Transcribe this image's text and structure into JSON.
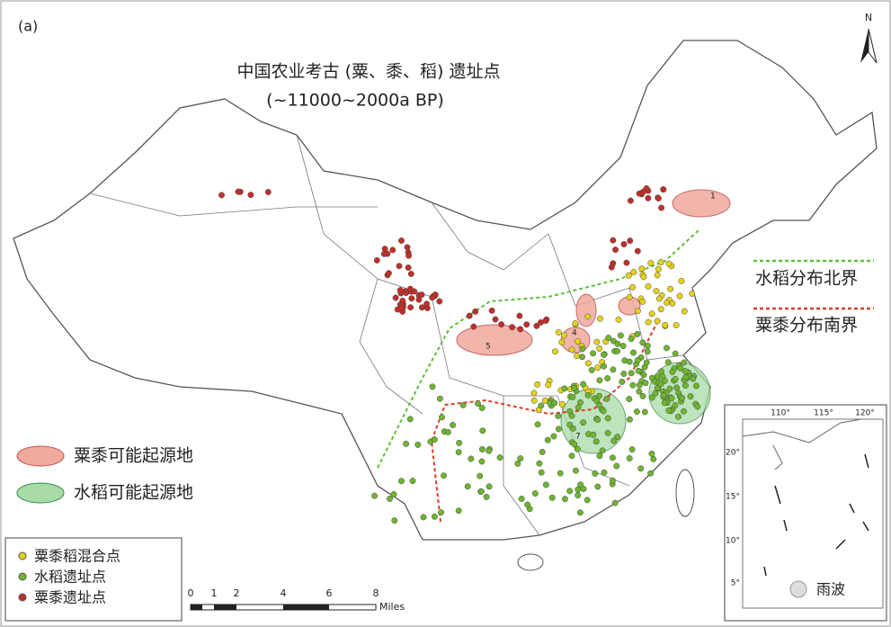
{
  "label": "(a)",
  "title": "中国农业考古 (粟、黍、稻) 遗址点",
  "subtitle": "(~11000~2000a BP)",
  "north": "N",
  "boundaries": [
    "水稻分布北界",
    "粟黍分布南界"
  ],
  "origins": [
    "粟黍可能起源地",
    "水稻可能起源地"
  ],
  "legend": [
    "粟黍稻混合点",
    "水稻遗址点",
    "粟黍遗址点"
  ],
  "region_numbers": [
    "1",
    "4",
    "5",
    "7"
  ],
  "scale": {
    "ticks": [
      "0",
      "1",
      "2",
      "4",
      "6",
      "8"
    ],
    "unit": "Miles"
  },
  "inset": {
    "x_labels": [
      "110°",
      "115°",
      "120°"
    ],
    "y_labels": [
      "20°",
      "15°",
      "10°",
      "5°"
    ]
  },
  "watermark": "雨波"
}
